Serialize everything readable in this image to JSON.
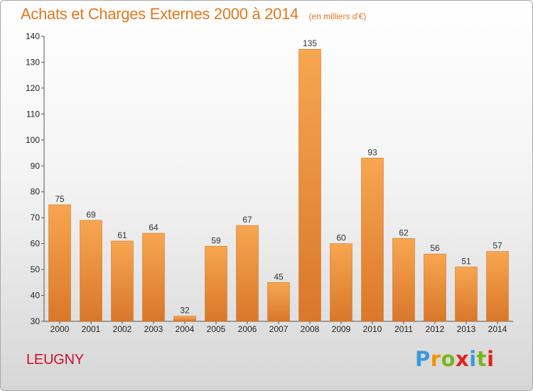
{
  "title": "Achats et Charges Externes 2000 à 2014",
  "subtitle": "(en milliers d'€)",
  "location": "LEUGNY",
  "logo": {
    "text": "Proxiti",
    "colors": [
      "#3a9bd9",
      "#f29400",
      "#7ab51d",
      "#e2231a",
      "#3a9bd9",
      "#7ab51d",
      "#e2231a"
    ]
  },
  "colors": {
    "title": "#e07820",
    "bar_light": "#f7a650",
    "bar_dark": "#d9772a",
    "location": "#c8102e"
  },
  "chart_data": {
    "type": "bar",
    "title": "Achats et Charges Externes 2000 à 2014",
    "subtitle": "(en milliers d'€)",
    "xlabel": "",
    "ylabel": "",
    "categories": [
      "2000",
      "2001",
      "2002",
      "2003",
      "2004",
      "2005",
      "2006",
      "2007",
      "2008",
      "2009",
      "2010",
      "2011",
      "2012",
      "2013",
      "2014"
    ],
    "values": [
      75,
      69,
      61,
      64,
      32,
      59,
      67,
      45,
      135,
      60,
      93,
      62,
      56,
      51,
      57
    ],
    "ylim": [
      30,
      140
    ],
    "yticks": [
      30,
      40,
      50,
      60,
      70,
      80,
      90,
      100,
      110,
      120,
      130,
      140
    ],
    "grid": false,
    "legend": "none"
  }
}
